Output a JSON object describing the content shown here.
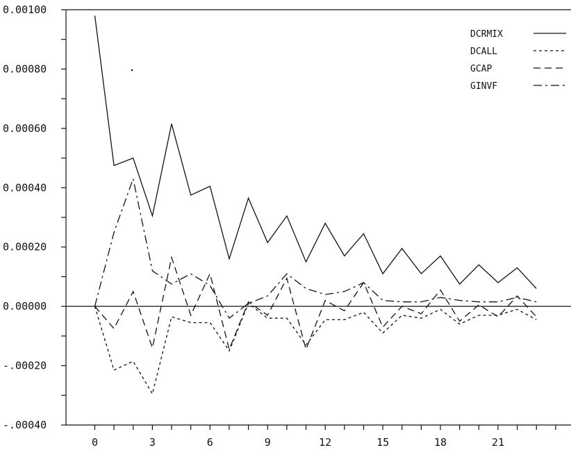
{
  "chart_data": {
    "type": "line",
    "title": "",
    "xlabel": "",
    "ylabel": "",
    "x": [
      0,
      1,
      2,
      3,
      4,
      5,
      6,
      7,
      8,
      9,
      10,
      11,
      12,
      13,
      14,
      15,
      16,
      17,
      18,
      19,
      20,
      21,
      22,
      23
    ],
    "xlim": [
      -1.5,
      24.8
    ],
    "ylim": [
      -0.0004,
      0.001
    ],
    "x_ticks": [
      0,
      1,
      2,
      3,
      4,
      5,
      6,
      7,
      8,
      9,
      10,
      11,
      12,
      13,
      14,
      15,
      16,
      17,
      18,
      19,
      20,
      21,
      22,
      23,
      24
    ],
    "x_tick_labels": [
      "0",
      "3",
      "6",
      "9",
      "12",
      "15",
      "18",
      "21"
    ],
    "x_tick_label_values": [
      0,
      3,
      6,
      9,
      12,
      15,
      18,
      21
    ],
    "y_ticks": [
      -0.0004,
      -0.0003,
      -0.0002,
      -0.0001,
      0,
      0.0001,
      0.0002,
      0.0003,
      0.0004,
      0.0005,
      0.0006,
      0.0007,
      0.0008,
      0.0009,
      0.001
    ],
    "y_tick_labels": [
      "-.00040",
      "-.00020",
      "0.00000",
      "0.00020",
      "0.00040",
      "0.00060",
      "0.00080",
      "0.00100"
    ],
    "y_tick_label_values": [
      -0.0004,
      -0.0002,
      0,
      0.0002,
      0.0004,
      0.0006,
      0.0008,
      0.001
    ],
    "zero_line": true,
    "grid": false,
    "legend_position": "top-right",
    "series": [
      {
        "name": "DCRMIX",
        "dash": "solid",
        "values": [
          0.00098,
          0.000475,
          0.0005,
          0.000305,
          0.000615,
          0.000375,
          0.000405,
          0.00016,
          0.000365,
          0.000215,
          0.000305,
          0.00015,
          0.00028,
          0.00017,
          0.000245,
          0.00011,
          0.000195,
          0.00011,
          0.00017,
          7.5e-05,
          0.00014,
          8e-05,
          0.00013,
          6e-05
        ]
      },
      {
        "name": "DCALL",
        "dash": "short-dash",
        "values": [
          0,
          -0.000215,
          -0.000185,
          -0.000295,
          -3.5e-05,
          -5.5e-05,
          -5.5e-05,
          -0.00015,
          1e-05,
          -4e-05,
          -4e-05,
          -0.00013,
          -4.5e-05,
          -4.5e-05,
          -2e-05,
          -9e-05,
          -3e-05,
          -4e-05,
          -1e-05,
          -6e-05,
          -3e-05,
          -3e-05,
          -1e-05,
          -4.5e-05
        ]
      },
      {
        "name": "GCAP",
        "dash": "long-dash",
        "values": [
          0,
          -7.5e-05,
          5e-05,
          -0.00014,
          0.000165,
          -3e-05,
          0.00011,
          -0.000145,
          1.5e-05,
          -3e-05,
          9.5e-05,
          -0.000145,
          2e-05,
          -1.5e-05,
          8e-05,
          -7e-05,
          0,
          -2.5e-05,
          5.5e-05,
          -5e-05,
          5e-06,
          -3.5e-05,
          3.5e-05,
          -3.5e-05
        ]
      },
      {
        "name": "GINVF",
        "dash": "dash-dot",
        "values": [
          0,
          0.00025,
          0.00043,
          0.00012,
          7.5e-05,
          0.00011,
          7e-05,
          -4e-05,
          1e-05,
          3.5e-05,
          0.00011,
          6e-05,
          4e-05,
          5e-05,
          8e-05,
          2e-05,
          1.5e-05,
          1.5e-05,
          3e-05,
          2e-05,
          1.5e-05,
          1.5e-05,
          3e-05,
          1.5e-05
        ]
      }
    ]
  }
}
